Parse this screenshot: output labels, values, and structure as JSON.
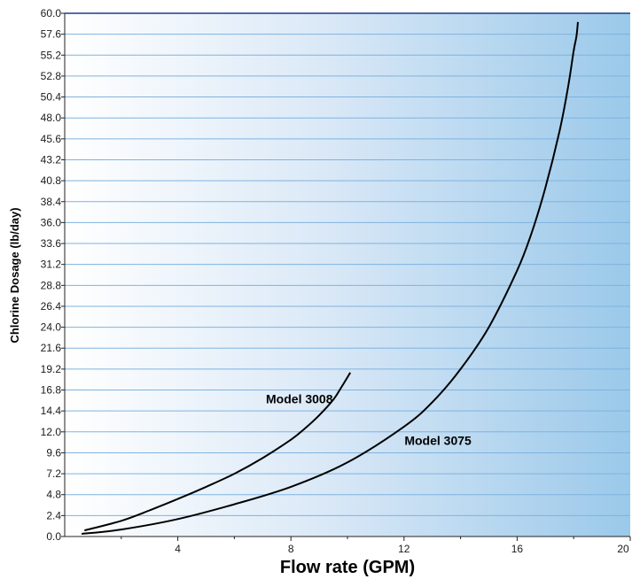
{
  "chart_data": {
    "type": "line",
    "title": "",
    "xlabel": "Flow rate (GPM)",
    "ylabel": "Chlorine Dosage (lb/day)",
    "xlim": [
      0,
      20
    ],
    "ylim": [
      0,
      60
    ],
    "x_ticks": [
      4,
      8,
      12,
      16,
      20
    ],
    "x_minor_ticks": [
      2,
      6,
      10,
      14,
      18
    ],
    "y_ticks": [
      0.0,
      2.4,
      4.8,
      7.2,
      9.6,
      12.0,
      14.4,
      16.8,
      19.2,
      21.6,
      24.0,
      26.4,
      28.8,
      31.2,
      33.6,
      36.0,
      38.4,
      40.8,
      43.2,
      45.6,
      48.0,
      50.4,
      52.8,
      55.2,
      57.6,
      60.0
    ],
    "grid": "horizontal",
    "background": "gradient white to light blue",
    "series": [
      {
        "name": "Model 3008",
        "color": "#000000",
        "x": [
          0.7,
          2,
          3,
          4,
          5,
          6,
          7,
          8,
          8.5,
          9,
          9.5,
          9.8,
          10.1
        ],
        "y": [
          0.7,
          1.8,
          3.0,
          4.3,
          5.7,
          7.2,
          9.0,
          11.1,
          12.4,
          13.9,
          15.7,
          17.2,
          18.8
        ]
      },
      {
        "name": "Model 3075",
        "color": "#000000",
        "x": [
          0.6,
          2,
          4,
          6,
          8,
          10,
          12,
          13,
          14,
          15,
          16,
          16.5,
          17,
          17.5,
          17.8,
          18.0,
          18.1,
          18.15
        ],
        "y": [
          0.3,
          0.8,
          2.0,
          3.7,
          5.7,
          8.5,
          12.6,
          15.4,
          19.2,
          24.0,
          30.5,
          34.7,
          40.0,
          46.5,
          51.5,
          55.7,
          57.4,
          59.0
        ]
      }
    ],
    "annotations": [
      {
        "text": "Model 3008",
        "x": 8.3,
        "y": 15.3
      },
      {
        "text": "Model 3075",
        "x": 13.2,
        "y": 10.5
      }
    ]
  }
}
